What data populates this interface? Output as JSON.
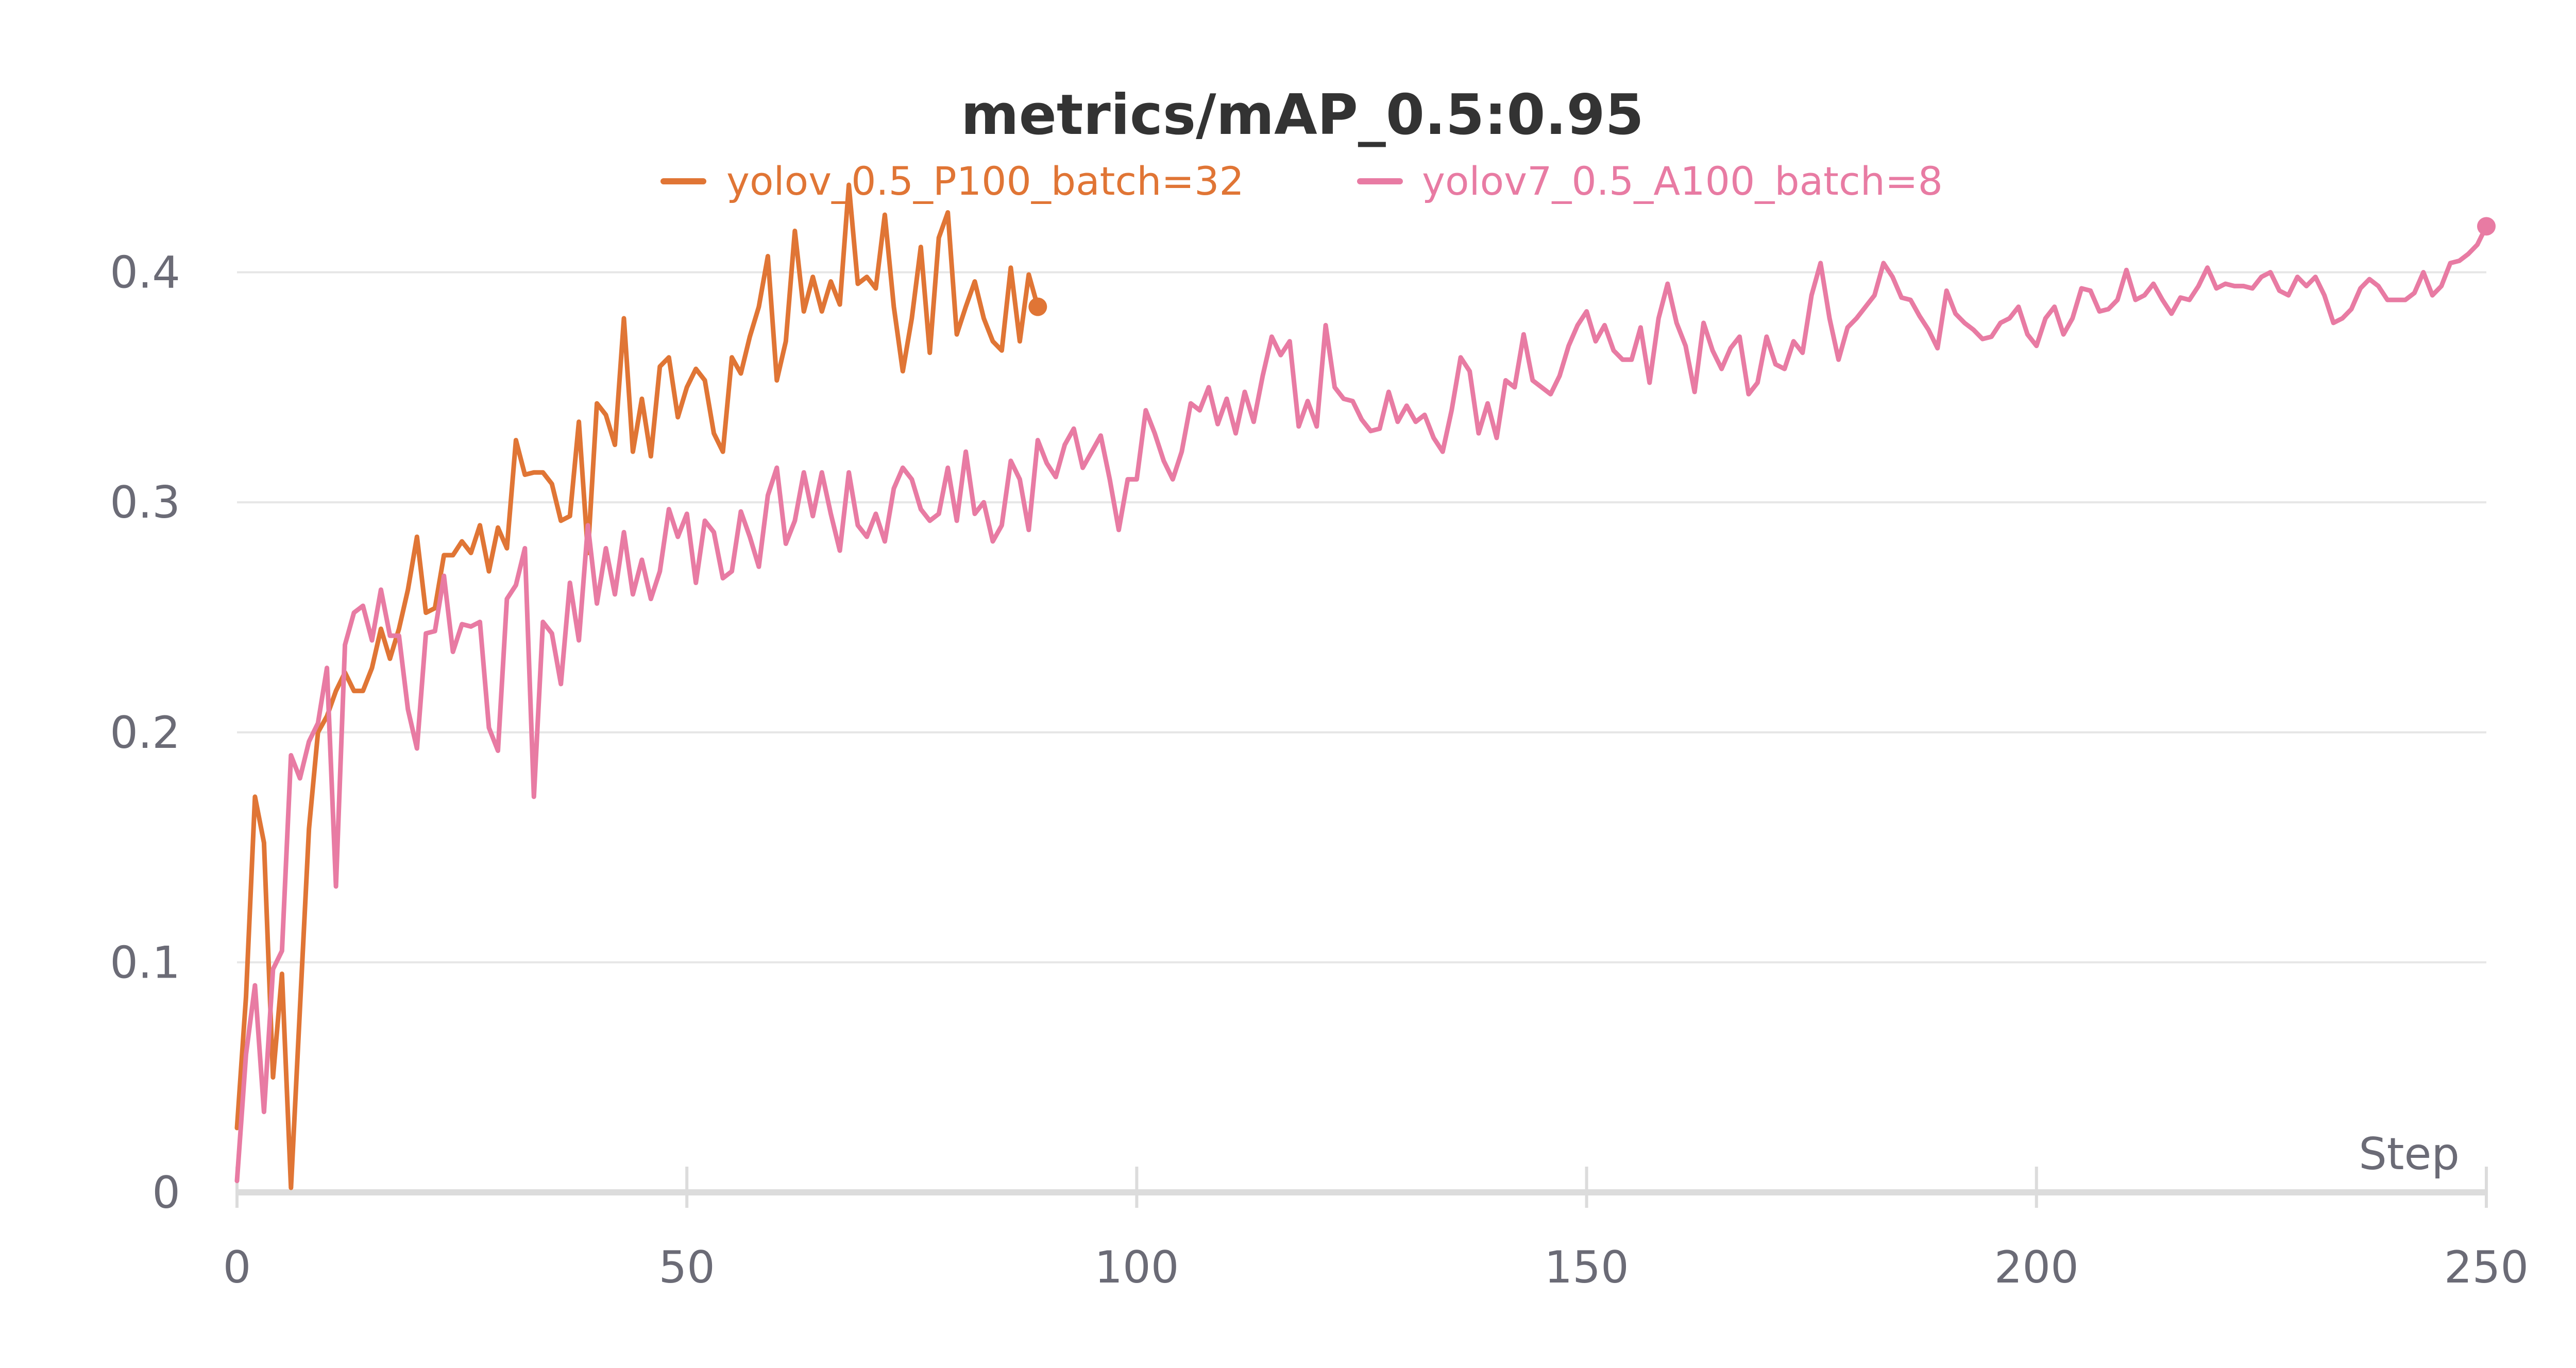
{
  "chart_data": {
    "type": "line",
    "title": "metrics/mAP_0.5:0.95",
    "xlabel": "Step",
    "ylabel": "",
    "xlim": [
      0,
      250
    ],
    "ylim": [
      0,
      0.44
    ],
    "x_ticks": [
      0,
      50,
      100,
      150,
      200,
      250
    ],
    "x_tick_labels": [
      "0",
      "50",
      "100",
      "150",
      "200",
      "250"
    ],
    "y_ticks": [
      0,
      0.1,
      0.2,
      0.3,
      0.4
    ],
    "y_tick_labels": [
      "0",
      "0.1",
      "0.2",
      "0.3",
      "0.4"
    ],
    "grid": true,
    "legend_position": "top-center",
    "series": [
      {
        "name": "yolov_0.5_P100_batch=32",
        "color": "#e07535",
        "end_marker": true,
        "x": [
          0,
          1,
          2,
          3,
          4,
          5,
          6,
          7,
          8,
          9,
          10,
          11,
          12,
          13,
          14,
          15,
          16,
          17,
          18,
          19,
          20,
          21,
          22,
          23,
          24,
          25,
          26,
          27,
          28,
          29,
          30,
          31,
          32,
          33,
          34,
          35,
          36,
          37,
          38,
          39,
          40,
          41,
          42,
          43,
          44,
          45,
          46,
          47,
          48,
          49,
          50,
          51,
          52,
          53,
          54,
          55,
          56,
          57,
          58,
          59,
          60,
          61,
          62,
          63,
          64,
          65,
          66,
          67,
          68,
          69,
          70,
          71,
          72,
          73,
          74,
          75,
          76,
          77,
          78,
          79,
          80,
          81,
          82,
          83,
          84,
          85,
          86,
          87,
          88,
          89
        ],
        "y": [
          0.028,
          0.085,
          0.172,
          0.152,
          0.05,
          0.095,
          0.002,
          0.08,
          0.158,
          0.2,
          0.207,
          0.218,
          0.226,
          0.218,
          0.218,
          0.228,
          0.245,
          0.232,
          0.245,
          0.262,
          0.285,
          0.252,
          0.254,
          0.277,
          0.277,
          0.283,
          0.278,
          0.29,
          0.27,
          0.289,
          0.28,
          0.327,
          0.312,
          0.313,
          0.313,
          0.308,
          0.292,
          0.294,
          0.335,
          0.278,
          0.343,
          0.338,
          0.325,
          0.38,
          0.322,
          0.345,
          0.32,
          0.359,
          0.363,
          0.337,
          0.35,
          0.358,
          0.353,
          0.33,
          0.322,
          0.363,
          0.356,
          0.372,
          0.385,
          0.407,
          0.353,
          0.37,
          0.418,
          0.383,
          0.398,
          0.383,
          0.396,
          0.386,
          0.438,
          0.395,
          0.398,
          0.393,
          0.425,
          0.385,
          0.357,
          0.38,
          0.411,
          0.365,
          0.415,
          0.426,
          0.373,
          0.385,
          0.396,
          0.38,
          0.37,
          0.366,
          0.402,
          0.37,
          0.399,
          0.385
        ]
      },
      {
        "name": "yolov7_0.5_A100_batch=8",
        "color": "#e87ba3",
        "end_marker": true,
        "x": [
          0,
          1,
          2,
          3,
          4,
          5,
          6,
          7,
          8,
          9,
          10,
          11,
          12,
          13,
          14,
          15,
          16,
          17,
          18,
          19,
          20,
          21,
          22,
          23,
          24,
          25,
          26,
          27,
          28,
          29,
          30,
          31,
          32,
          33,
          34,
          35,
          36,
          37,
          38,
          39,
          40,
          41,
          42,
          43,
          44,
          45,
          46,
          47,
          48,
          49,
          50,
          51,
          52,
          53,
          54,
          55,
          56,
          57,
          58,
          59,
          60,
          61,
          62,
          63,
          64,
          65,
          66,
          67,
          68,
          69,
          70,
          71,
          72,
          73,
          74,
          75,
          76,
          77,
          78,
          79,
          80,
          81,
          82,
          83,
          84,
          85,
          86,
          87,
          88,
          89,
          90,
          91,
          92,
          93,
          94,
          95,
          96,
          97,
          98,
          99,
          100,
          101,
          102,
          103,
          104,
          105,
          106,
          107,
          108,
          109,
          110,
          111,
          112,
          113,
          114,
          115,
          116,
          117,
          118,
          119,
          120,
          121,
          122,
          123,
          124,
          125,
          126,
          127,
          128,
          129,
          130,
          131,
          132,
          133,
          134,
          135,
          136,
          137,
          138,
          139,
          140,
          141,
          142,
          143,
          144,
          145,
          146,
          147,
          148,
          149,
          150,
          151,
          152,
          153,
          154,
          155,
          156,
          157,
          158,
          159,
          160,
          161,
          162,
          163,
          164,
          165,
          166,
          167,
          168,
          169,
          170,
          171,
          172,
          173,
          174,
          175,
          176,
          177,
          178,
          179,
          180,
          181,
          182,
          183,
          184,
          185,
          186,
          187,
          188,
          189,
          190,
          191,
          192,
          193,
          194,
          195,
          196,
          197,
          198,
          199,
          200,
          201,
          202,
          203,
          204,
          205,
          206,
          207,
          208,
          209,
          210,
          211,
          212,
          213,
          214,
          215,
          216,
          217,
          218,
          219,
          220,
          221,
          222,
          223,
          224,
          225,
          226,
          227,
          228,
          229,
          230,
          231,
          232,
          233,
          234,
          235,
          236,
          237,
          238,
          239,
          240,
          241,
          242,
          243,
          244,
          245,
          246,
          247,
          248,
          249,
          250
        ],
        "y": [
          0.005,
          0.06,
          0.09,
          0.035,
          0.097,
          0.105,
          0.19,
          0.18,
          0.196,
          0.204,
          0.228,
          0.133,
          0.238,
          0.252,
          0.255,
          0.24,
          0.262,
          0.242,
          0.242,
          0.21,
          0.193,
          0.243,
          0.244,
          0.268,
          0.235,
          0.247,
          0.246,
          0.248,
          0.202,
          0.192,
          0.258,
          0.264,
          0.28,
          0.172,
          0.248,
          0.243,
          0.221,
          0.265,
          0.24,
          0.29,
          0.256,
          0.28,
          0.26,
          0.287,
          0.26,
          0.275,
          0.258,
          0.27,
          0.297,
          0.285,
          0.295,
          0.265,
          0.292,
          0.287,
          0.267,
          0.27,
          0.296,
          0.285,
          0.272,
          0.303,
          0.315,
          0.282,
          0.292,
          0.313,
          0.294,
          0.313,
          0.295,
          0.279,
          0.313,
          0.29,
          0.285,
          0.295,
          0.283,
          0.306,
          0.315,
          0.31,
          0.297,
          0.292,
          0.295,
          0.315,
          0.292,
          0.322,
          0.295,
          0.3,
          0.283,
          0.29,
          0.318,
          0.31,
          0.288,
          0.327,
          0.317,
          0.311,
          0.325,
          0.332,
          0.315,
          0.322,
          0.329,
          0.31,
          0.288,
          0.31,
          0.31,
          0.34,
          0.33,
          0.318,
          0.31,
          0.322,
          0.343,
          0.34,
          0.35,
          0.334,
          0.345,
          0.33,
          0.348,
          0.335,
          0.355,
          0.372,
          0.364,
          0.37,
          0.333,
          0.344,
          0.333,
          0.377,
          0.35,
          0.345,
          0.344,
          0.336,
          0.331,
          0.332,
          0.348,
          0.335,
          0.342,
          0.335,
          0.338,
          0.328,
          0.322,
          0.34,
          0.363,
          0.357,
          0.33,
          0.343,
          0.328,
          0.353,
          0.35,
          0.373,
          0.353,
          0.35,
          0.347,
          0.355,
          0.368,
          0.377,
          0.383,
          0.37,
          0.377,
          0.366,
          0.362,
          0.362,
          0.376,
          0.352,
          0.38,
          0.395,
          0.378,
          0.368,
          0.348,
          0.378,
          0.366,
          0.358,
          0.367,
          0.372,
          0.347,
          0.352,
          0.372,
          0.36,
          0.358,
          0.37,
          0.365,
          0.39,
          0.404,
          0.38,
          0.362,
          0.376,
          0.38,
          0.385,
          0.39,
          0.404,
          0.398,
          0.389,
          0.388,
          0.381,
          0.375,
          0.367,
          0.392,
          0.382,
          0.378,
          0.375,
          0.371,
          0.372,
          0.378,
          0.38,
          0.385,
          0.373,
          0.368,
          0.38,
          0.385,
          0.373,
          0.38,
          0.393,
          0.392,
          0.383,
          0.384,
          0.388,
          0.401,
          0.388,
          0.39,
          0.395,
          0.388,
          0.382,
          0.389,
          0.388,
          0.394,
          0.402,
          0.393,
          0.395,
          0.394,
          0.394,
          0.393,
          0.398,
          0.4,
          0.392,
          0.39,
          0.398,
          0.394,
          0.398,
          0.39,
          0.378,
          0.38,
          0.384,
          0.393,
          0.397,
          0.394,
          0.388,
          0.388,
          0.388,
          0.391,
          0.4,
          0.39,
          0.394,
          0.404,
          0.405,
          0.408,
          0.412,
          0.42
        ]
      }
    ]
  }
}
